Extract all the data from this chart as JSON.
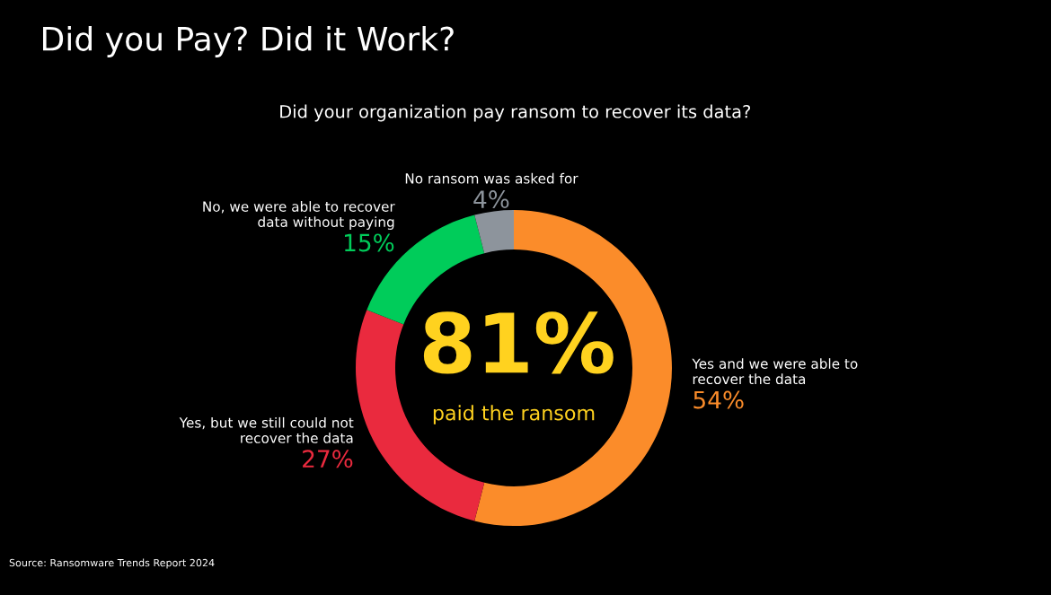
{
  "chart_data": {
    "type": "donut",
    "title": "Did you Pay? Did it Work?",
    "subtitle": "Did your organization pay ransom to recover its data?",
    "categories": [
      "Yes and we were able to\nrecover the data",
      "Yes, but we still could not\nrecover the data",
      "No, we were able to recover\ndata without paying",
      "No ransom was asked for"
    ],
    "values": [
      54,
      27,
      15,
      4
    ],
    "colors": [
      "#fb8c2a",
      "#ea2a3e",
      "#00cc5a",
      "#8d949c"
    ],
    "value_labels": [
      "54%",
      "27%",
      "15%",
      "4%"
    ],
    "annotations": [
      "81%",
      "paid the ransom",
      "Source: Ransomware Trends Report 2024"
    ],
    "legend": false
  }
}
